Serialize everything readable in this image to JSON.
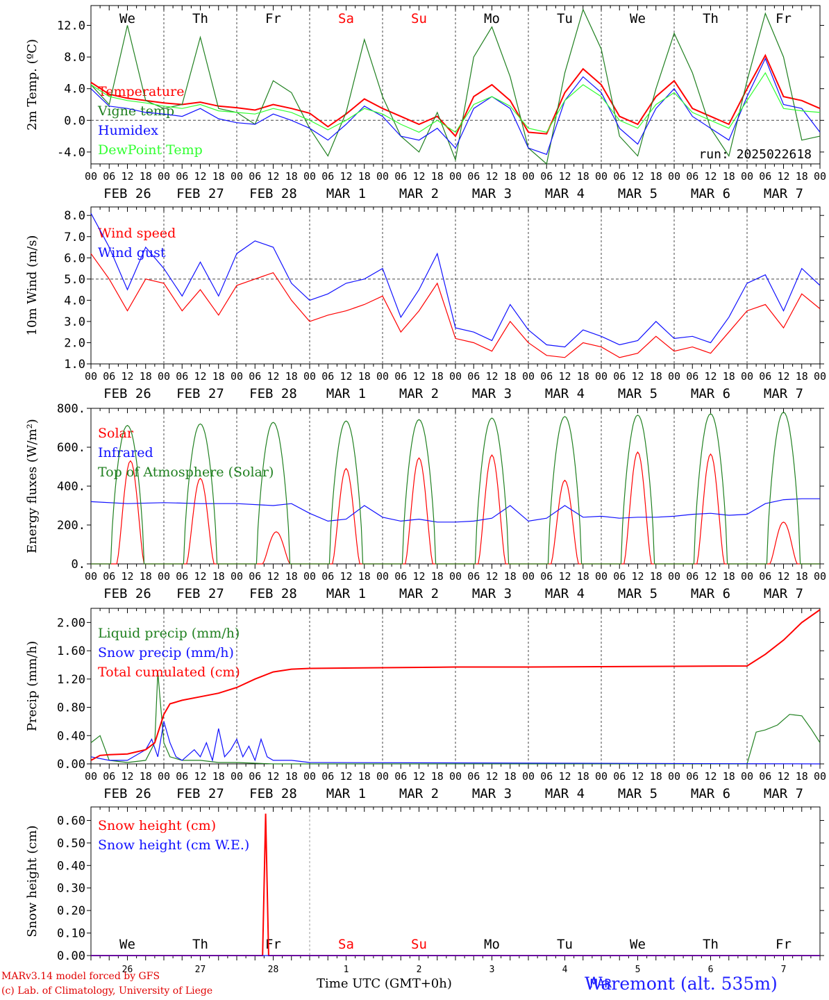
{
  "footer": {
    "credit_line1": "MARv3.14 model forced by GFS",
    "credit_line2": "(c) Lab. of Climatology, University of Liege",
    "station": "Waremont (alt. 535m)",
    "xtitle": "Time UTC (GMT+0h)"
  },
  "colors": {
    "red": "#ff0000",
    "green": "#208020",
    "blue": "#1010ff",
    "lightgreen": "#30ff30",
    "black": "#000000"
  },
  "hour_ticks": [
    "00",
    "06",
    "12",
    "18"
  ],
  "dates": [
    "FEB 26",
    "FEB 27",
    "FEB 28",
    "MAR 1",
    "MAR 2",
    "MAR 3",
    "MAR 4",
    "MAR 5",
    "MAR 6",
    "MAR 7"
  ],
  "weekdays": [
    {
      "label": "We",
      "color": "#000000"
    },
    {
      "label": "Th",
      "color": "#000000"
    },
    {
      "label": "Fr",
      "color": "#000000"
    },
    {
      "label": "Sa",
      "color": "#ff0000"
    },
    {
      "label": "Su",
      "color": "#ff0000"
    },
    {
      "label": "Mo",
      "color": "#000000"
    },
    {
      "label": "Tu",
      "color": "#000000"
    },
    {
      "label": "We",
      "color": "#000000"
    },
    {
      "label": "Th",
      "color": "#000000"
    },
    {
      "label": "Fr",
      "color": "#000000"
    }
  ],
  "day_numbers": [
    "26",
    "27",
    "28",
    "1",
    "2",
    "3",
    "4",
    "5",
    "6",
    "7"
  ],
  "month_label": "MAR",
  "chart_data": [
    {
      "type": "line",
      "ylabel": "2m Temp. (ºC)",
      "ylim": [
        -5.5,
        14.5
      ],
      "yticks": [
        "-4.0",
        "0.0",
        "4.0",
        "8.0",
        "12.0"
      ],
      "ytick_values": [
        -4,
        0,
        4,
        8,
        12
      ],
      "refline": 0,
      "annotation": "run: 2025022618",
      "x_unit": "hours since FEB 26 00 UTC",
      "series": [
        {
          "name": "Temperature",
          "color": "#ff0000",
          "x": [
            0,
            6,
            12,
            18,
            24,
            30,
            36,
            42,
            48,
            54,
            60,
            66,
            72,
            78,
            84,
            90,
            96,
            102,
            108,
            114,
            120,
            126,
            132,
            138,
            144,
            150,
            156,
            162,
            168,
            174,
            180,
            186,
            192,
            198,
            204,
            210,
            216,
            222,
            228,
            234,
            240
          ],
          "y": [
            4.8,
            3.3,
            2.8,
            2.5,
            2.2,
            2.0,
            2.3,
            1.8,
            1.6,
            1.3,
            2.0,
            1.5,
            0.9,
            -0.8,
            0.8,
            2.7,
            1.5,
            0.5,
            -0.5,
            0.5,
            -2.0,
            3.0,
            4.5,
            2.5,
            -1.5,
            -1.7,
            3.5,
            6.5,
            4.5,
            0.5,
            -0.5,
            3.0,
            5.0,
            1.5,
            0.5,
            -0.5,
            4.0,
            8.2,
            3.0,
            2.5,
            1.5
          ]
        },
        {
          "name": "Vigne temp",
          "color": "#208020",
          "x": [
            0,
            6,
            12,
            18,
            24,
            30,
            36,
            42,
            48,
            54,
            60,
            66,
            72,
            78,
            84,
            90,
            96,
            102,
            108,
            114,
            120,
            126,
            132,
            138,
            144,
            150,
            156,
            162,
            168,
            174,
            180,
            186,
            192,
            198,
            204,
            210,
            216,
            222,
            228,
            234,
            240
          ],
          "y": [
            4.5,
            2.0,
            12.0,
            2.5,
            1.5,
            2.0,
            10.5,
            1.5,
            1.0,
            -0.5,
            5.0,
            3.5,
            -1.0,
            -4.5,
            1.0,
            10.2,
            3.0,
            -2.0,
            -4.0,
            1.0,
            -5.0,
            8.0,
            11.8,
            5.5,
            -3.5,
            -5.5,
            6.0,
            14.0,
            9.0,
            -2.0,
            -4.5,
            4.0,
            11.0,
            6.0,
            -1.0,
            -4.5,
            5.0,
            13.5,
            8.0,
            -2.5,
            -2.0
          ]
        },
        {
          "name": "Humidex",
          "color": "#1010ff",
          "x": [
            0,
            6,
            12,
            18,
            24,
            30,
            36,
            42,
            48,
            54,
            60,
            66,
            72,
            78,
            84,
            90,
            96,
            102,
            108,
            114,
            120,
            126,
            132,
            138,
            144,
            150,
            156,
            162,
            168,
            174,
            180,
            186,
            192,
            198,
            204,
            210,
            216,
            222,
            228,
            234,
            240
          ],
          "y": [
            4.0,
            1.8,
            1.5,
            1.0,
            0.8,
            0.5,
            1.5,
            0.2,
            -0.3,
            -0.5,
            0.8,
            0.0,
            -1.0,
            -2.5,
            -0.5,
            1.8,
            0.5,
            -2.0,
            -2.5,
            -1.0,
            -3.5,
            1.5,
            3.0,
            1.5,
            -3.5,
            -4.3,
            2.5,
            5.5,
            3.5,
            -1.0,
            -3.0,
            1.5,
            4.0,
            0.5,
            -1.0,
            -2.5,
            3.0,
            7.8,
            2.0,
            1.5,
            -1.5
          ]
        },
        {
          "name": "DewPoint Temp",
          "color": "#30ff30",
          "x": [
            0,
            6,
            12,
            18,
            24,
            30,
            36,
            42,
            48,
            54,
            60,
            66,
            72,
            78,
            84,
            90,
            96,
            102,
            108,
            114,
            120,
            126,
            132,
            138,
            144,
            150,
            156,
            162,
            168,
            174,
            180,
            186,
            192,
            198,
            204,
            210,
            216,
            222,
            228,
            234,
            240
          ],
          "y": [
            4.5,
            3.0,
            2.5,
            2.2,
            1.8,
            1.5,
            2.0,
            1.2,
            1.0,
            0.8,
            1.5,
            1.0,
            0.0,
            -1.2,
            0.0,
            1.5,
            0.8,
            -0.5,
            -1.5,
            0.0,
            -1.5,
            2.0,
            3.0,
            1.8,
            -1.0,
            -1.5,
            2.5,
            4.5,
            3.0,
            0.0,
            -1.0,
            2.0,
            3.5,
            1.0,
            0.0,
            -1.0,
            2.5,
            6.0,
            1.5,
            1.2,
            1.0
          ]
        }
      ]
    },
    {
      "type": "line",
      "ylabel": "10m Wind (m/s)",
      "ylim": [
        1.0,
        8.4
      ],
      "yticks": [
        "1.0",
        "2.0",
        "3.0",
        "4.0",
        "5.0",
        "6.0",
        "7.0",
        "8.0"
      ],
      "ytick_values": [
        1,
        2,
        3,
        4,
        5,
        6,
        7,
        8
      ],
      "refline": 5,
      "x_unit": "hours since FEB 26 00 UTC",
      "series": [
        {
          "name": "Wind speed",
          "color": "#ff0000",
          "x": [
            0,
            6,
            12,
            18,
            24,
            30,
            36,
            42,
            48,
            54,
            60,
            66,
            72,
            78,
            84,
            90,
            96,
            102,
            108,
            114,
            120,
            126,
            132,
            138,
            144,
            150,
            156,
            162,
            168,
            174,
            180,
            186,
            192,
            198,
            204,
            210,
            216,
            222,
            228,
            234,
            240
          ],
          "y": [
            6.2,
            5.0,
            3.5,
            5.0,
            4.8,
            3.5,
            4.5,
            3.3,
            4.7,
            5.0,
            5.3,
            4.0,
            3.0,
            3.3,
            3.5,
            3.8,
            4.2,
            2.5,
            3.5,
            4.8,
            2.2,
            2.0,
            1.6,
            3.0,
            2.0,
            1.4,
            1.3,
            2.0,
            1.8,
            1.3,
            1.5,
            2.3,
            1.6,
            1.8,
            1.5,
            2.5,
            3.5,
            3.8,
            2.7,
            4.3,
            3.6
          ]
        },
        {
          "name": "Wind gust",
          "color": "#1010ff",
          "x": [
            0,
            6,
            12,
            18,
            24,
            30,
            36,
            42,
            48,
            54,
            60,
            66,
            72,
            78,
            84,
            90,
            96,
            102,
            108,
            114,
            120,
            126,
            132,
            138,
            144,
            150,
            156,
            162,
            168,
            174,
            180,
            186,
            192,
            198,
            204,
            210,
            216,
            222,
            228,
            234,
            240
          ],
          "y": [
            8.1,
            6.5,
            4.5,
            6.5,
            5.5,
            4.2,
            5.8,
            4.2,
            6.2,
            6.8,
            6.5,
            4.8,
            4.0,
            4.3,
            4.8,
            5.0,
            5.5,
            3.2,
            4.5,
            6.2,
            2.7,
            2.5,
            2.1,
            3.8,
            2.6,
            1.9,
            1.8,
            2.6,
            2.3,
            1.9,
            2.1,
            3.0,
            2.2,
            2.3,
            2.0,
            3.2,
            4.8,
            5.2,
            3.5,
            5.5,
            4.7
          ]
        }
      ]
    },
    {
      "type": "line",
      "ylabel": "Energy fluxes (W/m²)",
      "ylim": [
        0,
        800
      ],
      "yticks": [
        "0.",
        "200.",
        "400.",
        "600.",
        "800."
      ],
      "ytick_values": [
        0,
        200,
        400,
        600,
        800
      ],
      "x_unit": "hours since FEB 26 00 UTC",
      "series": [
        {
          "name": "Solar",
          "color": "#ff0000",
          "peaks": [
            [
              13,
              530
            ],
            [
              36,
              440
            ],
            [
              61,
              165
            ],
            [
              84,
              490
            ],
            [
              108,
              545
            ],
            [
              132,
              560
            ],
            [
              156,
              430
            ],
            [
              180,
              575
            ],
            [
              204,
              565
            ],
            [
              228,
              215
            ]
          ]
        },
        {
          "name": "Infrared",
          "color": "#1010ff",
          "x": [
            0,
            12,
            24,
            36,
            48,
            60,
            66,
            72,
            78,
            84,
            90,
            96,
            102,
            108,
            114,
            120,
            126,
            132,
            138,
            144,
            150,
            156,
            162,
            168,
            174,
            180,
            186,
            192,
            198,
            204,
            210,
            216,
            222,
            228,
            234,
            240
          ],
          "y": [
            320,
            310,
            315,
            310,
            310,
            300,
            310,
            260,
            220,
            230,
            300,
            240,
            220,
            230,
            215,
            215,
            220,
            235,
            300,
            220,
            235,
            300,
            240,
            245,
            235,
            240,
            240,
            245,
            255,
            260,
            250,
            255,
            310,
            330,
            335,
            335
          ]
        },
        {
          "name": "Top of Atmosphere (Solar)",
          "color": "#208020",
          "peaks": [
            [
              12,
              712
            ],
            [
              36,
              720
            ],
            [
              60,
              728
            ],
            [
              84,
              735
            ],
            [
              108,
              742
            ],
            [
              132,
              750
            ],
            [
              156,
              758
            ],
            [
              180,
              765
            ],
            [
              204,
              772
            ],
            [
              228,
              780
            ]
          ]
        }
      ]
    },
    {
      "type": "line",
      "ylabel": "Precip (mm/h)",
      "ylim": [
        0,
        2.2
      ],
      "yticks": [
        "0.00",
        "0.40",
        "0.80",
        "1.20",
        "1.60",
        "2.00"
      ],
      "ytick_values": [
        0,
        0.4,
        0.8,
        1.2,
        1.6,
        2.0
      ],
      "x_unit": "hours since FEB 26 00 UTC",
      "series": [
        {
          "name": "Liquid precip (mm/h)",
          "color": "#208020",
          "x": [
            0,
            3,
            6,
            12,
            18,
            21,
            22,
            23,
            24,
            26,
            30,
            36,
            42,
            48,
            54,
            60,
            216,
            219,
            222,
            226,
            230,
            234,
            237,
            240
          ],
          "y": [
            0.3,
            0.4,
            0.05,
            0.02,
            0.05,
            0.3,
            1.3,
            0.8,
            0.3,
            0.1,
            0.05,
            0.05,
            0.02,
            0.02,
            0.01,
            0,
            0,
            0.45,
            0.48,
            0.55,
            0.7,
            0.68,
            0.5,
            0.3
          ]
        },
        {
          "name": "Snow precip (mm/h)",
          "color": "#1010ff",
          "x": [
            0,
            6,
            12,
            18,
            20,
            22,
            24,
            26,
            28,
            30,
            34,
            36,
            38,
            40,
            42,
            44,
            46,
            48,
            50,
            52,
            54,
            56,
            58,
            60,
            66,
            72,
            240
          ],
          "y": [
            0.1,
            0.05,
            0.05,
            0.2,
            0.35,
            0.1,
            0.6,
            0.3,
            0.1,
            0.05,
            0.2,
            0.1,
            0.3,
            0.05,
            0.5,
            0.1,
            0.2,
            0.35,
            0.1,
            0.25,
            0.05,
            0.35,
            0.1,
            0.05,
            0.05,
            0.02,
            0
          ]
        },
        {
          "name": "Total cumulated (cm)",
          "color": "#ff0000",
          "x": [
            0,
            3,
            6,
            12,
            18,
            21,
            24,
            26,
            30,
            36,
            42,
            48,
            54,
            60,
            66,
            72,
            96,
            120,
            144,
            168,
            192,
            216,
            222,
            228,
            234,
            240
          ],
          "y": [
            0.05,
            0.12,
            0.13,
            0.14,
            0.2,
            0.3,
            0.7,
            0.85,
            0.9,
            0.95,
            1.0,
            1.08,
            1.2,
            1.3,
            1.34,
            1.35,
            1.36,
            1.37,
            1.37,
            1.375,
            1.38,
            1.385,
            1.55,
            1.75,
            2.0,
            2.18
          ]
        }
      ]
    },
    {
      "type": "line",
      "ylabel": "Snow height (cm)",
      "ylim": [
        0,
        0.66
      ],
      "yticks": [
        "0.00",
        "0.10",
        "0.20",
        "0.30",
        "0.40",
        "0.50",
        "0.60"
      ],
      "ytick_values": [
        0,
        0.1,
        0.2,
        0.3,
        0.4,
        0.5,
        0.6
      ],
      "x_unit": "hours since FEB 26 00 UTC",
      "series": [
        {
          "name": "Snow height (cm)",
          "color": "#ff0000",
          "x": [
            0,
            56.5,
            57.5,
            58.5,
            240
          ],
          "y": [
            0,
            0,
            0.63,
            0,
            0
          ]
        },
        {
          "name": "Snow height (cm W.E.)",
          "color": "#1010ff",
          "x": [
            0,
            240
          ],
          "y": [
            0,
            0
          ]
        }
      ]
    }
  ]
}
